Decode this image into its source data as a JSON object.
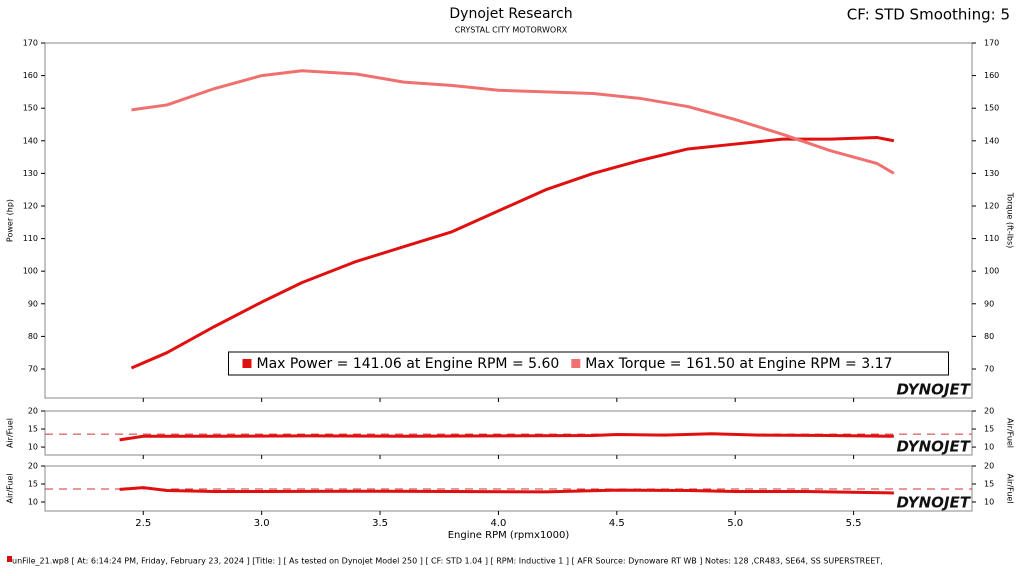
{
  "chart_data": [
    {
      "type": "line",
      "title": "Dynojet Research",
      "subtitle": "CRYSTAL CITY MOTORWORX",
      "ylabel": "Power (hp)",
      "y2label": "Torque (ft-lbs)",
      "x": [
        2.45,
        2.6,
        2.8,
        3.0,
        3.17,
        3.4,
        3.6,
        3.8,
        4.0,
        4.2,
        4.4,
        4.6,
        4.8,
        5.0,
        5.2,
        5.4,
        5.6,
        5.67
      ],
      "series": [
        {
          "name": "Max Power = 141.06 at Engine RPM = 5.60",
          "color": "#e01010",
          "values": [
            70.3,
            75,
            83,
            90.5,
            96.5,
            103,
            107.5,
            112,
            118.5,
            125,
            130,
            134,
            137.5,
            139,
            140.5,
            140.5,
            141,
            140
          ]
        },
        {
          "name": "Max Torque = 161.50 at Engine RPM = 3.17",
          "color": "#f07070",
          "axis": "y2",
          "values": [
            149.5,
            151,
            156,
            160,
            161.5,
            160.5,
            158,
            157,
            155.5,
            155,
            154.5,
            153,
            150.5,
            146.5,
            142,
            137,
            133,
            130
          ]
        }
      ],
      "xlim": [
        2.085,
        6.0
      ],
      "ylim": [
        61.1,
        170
      ],
      "yticks": [
        70,
        80,
        90,
        100,
        110,
        120,
        130,
        140,
        150,
        160,
        170
      ],
      "y2lim": [
        61.1,
        170
      ],
      "y2ticks": [
        70,
        80,
        90,
        100,
        110,
        120,
        130,
        140,
        150,
        160,
        170
      ],
      "legend": "lower center",
      "logo": "DYNOJET"
    },
    {
      "type": "line",
      "ylabel": "Air/Fuel",
      "x": [
        2.4,
        2.5,
        2.8,
        3.2,
        3.6,
        4.0,
        4.4,
        4.5,
        4.7,
        4.9,
        5.1,
        5.4,
        5.67
      ],
      "series": [
        {
          "name": "Air/Fuel",
          "color": "#e01010",
          "values": [
            12,
            13,
            13,
            13.1,
            13,
            13.1,
            13.2,
            13.5,
            13.3,
            13.7,
            13.3,
            13.2,
            13
          ]
        }
      ],
      "reference_line": 13.6,
      "xlim": [
        2.085,
        6.0
      ],
      "ylim": [
        7.8,
        20
      ],
      "yticks": [
        10,
        15,
        20
      ],
      "logo": "DYNOJET"
    },
    {
      "type": "line",
      "ylabel": "Air/Fuel",
      "xlabel": "Engine RPM (rpmx1000)",
      "x": [
        2.4,
        2.5,
        2.6,
        2.8,
        3.0,
        3.4,
        3.8,
        4.2,
        4.5,
        4.8,
        5.0,
        5.3,
        5.67
      ],
      "series": [
        {
          "name": "Air/Fuel",
          "color": "#e01010",
          "values": [
            13.5,
            14,
            13.2,
            12.9,
            12.9,
            13,
            12.9,
            12.8,
            13.3,
            13.2,
            12.9,
            12.9,
            12.5
          ]
        }
      ],
      "reference_line": 13.6,
      "xlim": [
        2.085,
        6.0
      ],
      "ylim": [
        7.5,
        20
      ],
      "yticks": [
        10,
        15,
        20
      ],
      "xticks": [
        2.5,
        {
          "value": 3,
          "label": "3.0"
        },
        3.5,
        {
          "value": 4,
          "label": "4.0"
        },
        4.5,
        {
          "value": 5,
          "label": "5.0"
        },
        5.5
      ],
      "logo": "DYNOJET"
    }
  ],
  "header_right": "CF: STD Smoothing: 5",
  "status_bar": "unFile_21.wp8  [ At: 6:14:24 PM, Friday, February 23, 2024 ] [Title: ]  [ As tested on Dynojet Model 250 ] [ CF: STD 1.04 ] [ RPM: Inductive 1 ] [ AFR Source: Dynoware RT WB ] Notes: 128 ,CR483, SE64, SS SUPERSTREET,"
}
